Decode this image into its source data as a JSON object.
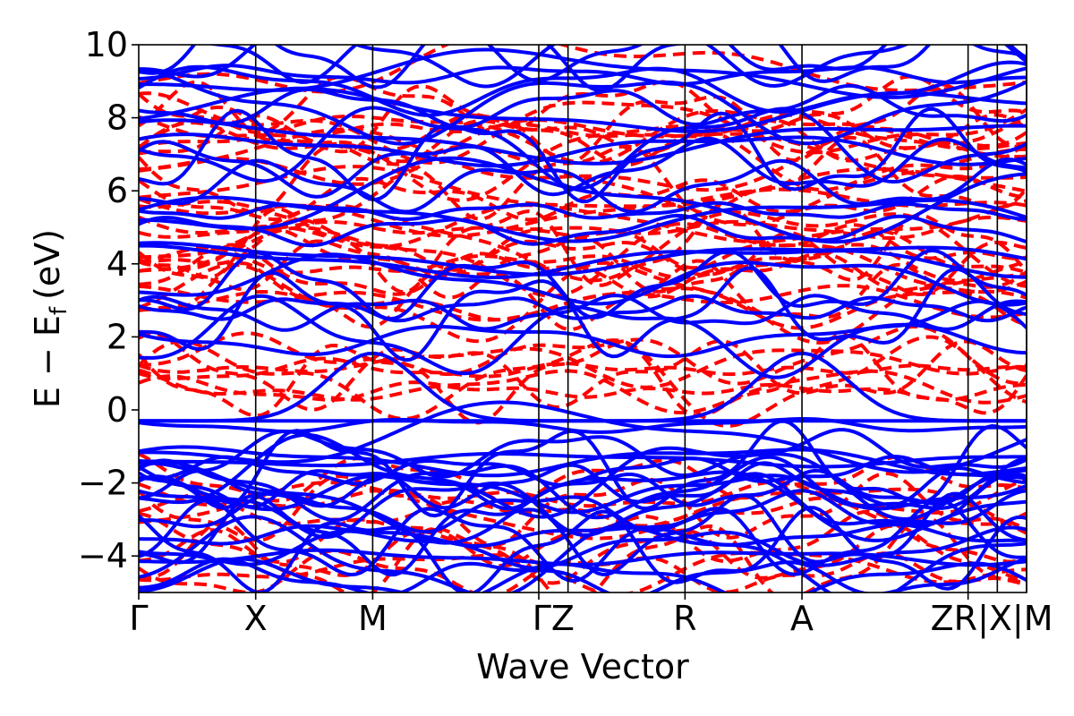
{
  "chart_data": {
    "type": "line",
    "title": "",
    "xlabel": "Wave Vector",
    "ylabel": {
      "main": "E − E",
      "subscript": "f",
      "unit": "(eV)"
    },
    "ylim": [
      -5,
      10
    ],
    "yticks": [
      {
        "value": -4,
        "label": "−4"
      },
      {
        "value": -2,
        "label": "−2"
      },
      {
        "value": 0,
        "label": "0"
      },
      {
        "value": 2,
        "label": "2"
      },
      {
        "value": 4,
        "label": "4"
      },
      {
        "value": 6,
        "label": "6"
      },
      {
        "value": 8,
        "label": "8"
      },
      {
        "value": 10,
        "label": "10"
      }
    ],
    "kpoints": [
      {
        "label": "Γ",
        "x": 0.0
      },
      {
        "label": "X",
        "x": 1.0
      },
      {
        "label": "M",
        "x": 2.0
      },
      {
        "label": "ΓZ",
        "x": 3.42,
        "x2": 3.67
      },
      {
        "label": "R",
        "x": 4.67
      },
      {
        "label": "A",
        "x": 5.67
      },
      {
        "label": "ZR|X|M",
        "x": 7.09,
        "extra": [
          7.34,
          7.59,
          7.59
        ]
      }
    ],
    "kpath_breaks": [
      1.0,
      2.0,
      3.42,
      3.67,
      4.67,
      5.67,
      7.09,
      7.34,
      7.59
    ],
    "xlim": [
      0,
      7.59
    ],
    "grid": false,
    "series": [
      {
        "style": "solid",
        "color": "#0000ff"
      },
      {
        "style": "dashed",
        "color": "#ff0000"
      }
    ]
  }
}
